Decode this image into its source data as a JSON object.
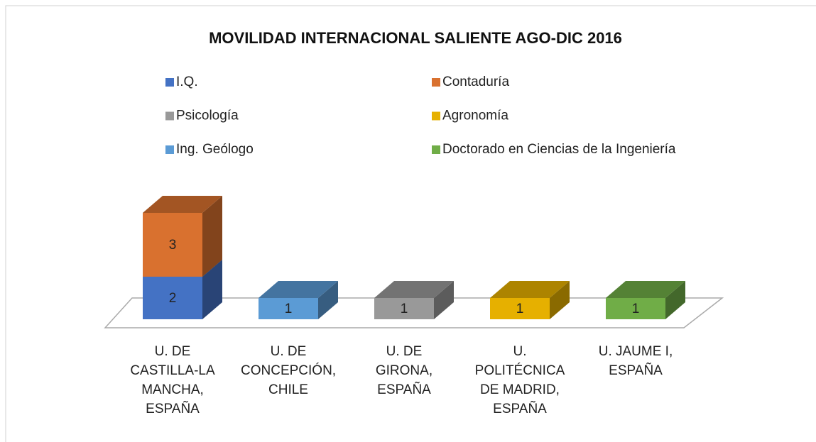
{
  "chart_data": {
    "type": "bar3d_stacked",
    "title": "MOVILIDAD INTERNACIONAL SALIENTE AGO-DIC 2016",
    "categories": [
      "U. DE CASTILLA-LA MANCHA, ESPAÑA",
      "U. DE CONCEPCIÓN, CHILE",
      "U. DE GIRONA, ESPAÑA",
      "U. POLITÉCNICA DE MADRID, ESPAÑA",
      "U. JAUME I, ESPAÑA"
    ],
    "series": [
      {
        "name": "I.Q.",
        "color": "#4472c4",
        "values": [
          2,
          null,
          null,
          null,
          null
        ]
      },
      {
        "name": "Contaduría",
        "color": "#d9712f",
        "values": [
          3,
          null,
          null,
          null,
          null
        ]
      },
      {
        "name": "Psicología",
        "color": "#999999",
        "values": [
          null,
          null,
          1,
          null,
          null
        ]
      },
      {
        "name": "Agronomía",
        "color": "#e6b000",
        "values": [
          null,
          null,
          null,
          1,
          null
        ]
      },
      {
        "name": "Ing. Geólogo",
        "color": "#5b9bd5",
        "values": [
          null,
          1,
          null,
          null,
          null
        ]
      },
      {
        "name": "Doctorado en Ciencias de la Ingeniería",
        "color": "#70ad47",
        "values": [
          null,
          null,
          null,
          null,
          1
        ]
      }
    ],
    "legend": "top"
  }
}
